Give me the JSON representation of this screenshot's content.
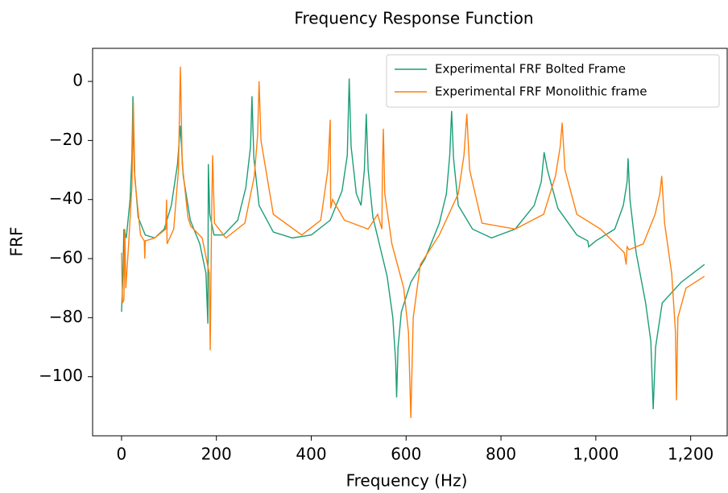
{
  "chart_data": {
    "type": "line",
    "title": "Frequency Response Function",
    "x_label": "Frequency (Hz)",
    "y_label": "FRF",
    "xlim": [
      -61,
      1277
    ],
    "ylim": [
      -120,
      11.2
    ],
    "xticks": [
      0,
      200,
      400,
      600,
      800,
      {
        "value": 1000,
        "label": "1,000"
      },
      {
        "value": 1200,
        "label": "1,200"
      }
    ],
    "yticks": [
      {
        "value": -100,
        "label": "−100"
      },
      {
        "value": -80,
        "label": "−80"
      },
      {
        "value": -60,
        "label": "−60"
      },
      {
        "value": -40,
        "label": "−40"
      },
      {
        "value": -20,
        "label": "−20"
      },
      0
    ],
    "grid": false,
    "legend": "upper right",
    "series": [
      {
        "name": "Experimental FRF Bolted Frame",
        "color": "#1b9e77",
        "x": [
          0,
          3,
          5,
          10,
          18,
          22,
          24,
          27,
          35,
          50,
          70,
          90,
          105,
          118,
          124,
          130,
          145,
          165,
          178,
          182,
          183,
          186,
          195,
          215,
          245,
          262,
          272,
          275,
          279,
          290,
          320,
          360,
          400,
          440,
          465,
          476,
          480,
          484,
          495,
          505,
          512,
          516,
          520,
          530,
          545,
          560,
          572,
          578,
          580,
          583,
          590,
          610,
          640,
          670,
          685,
          692,
          696,
          700,
          710,
          740,
          780,
          830,
          870,
          885,
          891,
          898,
          920,
          960,
          983,
          985,
          1000,
          1040,
          1058,
          1066,
          1068,
          1072,
          1085,
          1105,
          1116,
          1121,
          1126,
          1140,
          1180,
          1229
        ],
        "values": [
          -78,
          -65,
          -50,
          -53,
          -40,
          -25,
          -5,
          -30,
          -46,
          -52,
          -53,
          -50,
          -42,
          -28,
          -15,
          -32,
          -47,
          -55,
          -65,
          -82,
          -28,
          -45,
          -52,
          -52,
          -47,
          -36,
          -22,
          -5,
          -26,
          -42,
          -51,
          -53,
          -52,
          -47,
          -37,
          -25,
          1,
          -22,
          -38,
          -42,
          -30,
          -11,
          -30,
          -46,
          -56,
          -66,
          -80,
          -95,
          -107,
          -90,
          -78,
          -68,
          -60,
          -48,
          -38,
          -25,
          -10,
          -26,
          -42,
          -50,
          -53,
          -50,
          -42,
          -34,
          -24,
          -30,
          -43,
          -52,
          -54,
          -56,
          -54,
          -50,
          -42,
          -34,
          -26,
          -40,
          -58,
          -75,
          -88,
          -111,
          -90,
          -75,
          -68,
          -62
        ]
      },
      {
        "name": "Experimental FRF Monolithic frame",
        "color": "#ff7f0e",
        "x": [
          0,
          2,
          5,
          7,
          9,
          15,
          22,
          25,
          28,
          40,
          48,
          49,
          50,
          70,
          93,
          95,
          96,
          110,
          120,
          124,
          128,
          140,
          146,
          170,
          185,
          187,
          190,
          192,
          196,
          220,
          260,
          280,
          287,
          290,
          294,
          320,
          380,
          420,
          435,
          440,
          441,
          445,
          470,
          520,
          540,
          549,
          550,
          552,
          555,
          570,
          595,
          605,
          610,
          615,
          630,
          670,
          710,
          722,
          728,
          734,
          760,
          830,
          890,
          915,
          925,
          929,
          935,
          960,
          1010,
          1060,
          1064,
          1066,
          1070,
          1100,
          1125,
          1135,
          1139,
          1145,
          1160,
          1168,
          1170,
          1173,
          1190,
          1229
        ],
        "values": [
          -58,
          -75,
          -74,
          -50,
          -70,
          -55,
          -35,
          -7,
          -33,
          -52,
          -54,
          -60,
          -54,
          -53,
          -50,
          -40,
          -55,
          -50,
          -30,
          5,
          -28,
          -46,
          -49,
          -53,
          -65,
          -91,
          -45,
          -25,
          -48,
          -53,
          -48,
          -32,
          -18,
          0,
          -20,
          -45,
          -52,
          -47,
          -30,
          -13,
          -43,
          -40,
          -47,
          -50,
          -45,
          -50,
          -30,
          -16,
          -38,
          -55,
          -70,
          -85,
          -114,
          -80,
          -62,
          -52,
          -38,
          -25,
          -11,
          -30,
          -48,
          -50,
          -45,
          -32,
          -22,
          -14,
          -30,
          -45,
          -50,
          -58,
          -62,
          -56,
          -57,
          -55,
          -45,
          -38,
          -32,
          -48,
          -65,
          -85,
          -108,
          -80,
          -70,
          -66
        ]
      }
    ]
  }
}
